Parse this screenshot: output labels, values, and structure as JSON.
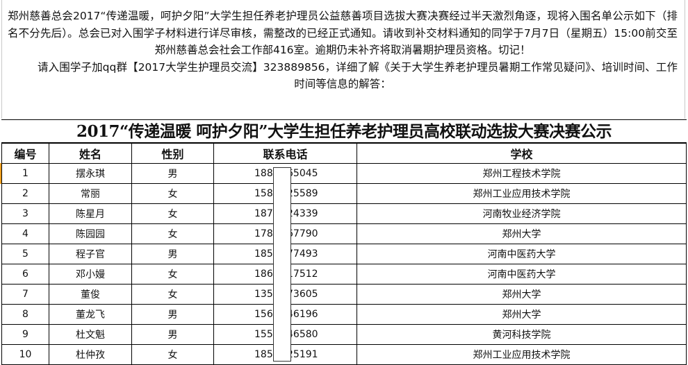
{
  "notice": {
    "paragraph1": "郑州慈善总会2017“传递温暖，呵护夕阳”大学生担任养老护理员公益慈善项目选拔大赛决赛经过半天激烈角逐，现将入围名单公示如下（排名不分先后）。总会已对入围学子材料进行详尽审核，需整改的已经正式通知。请收到补交材料通知的同学于7月7日（星期五）15:00前交至郑州慈善总会社会工作部416室。逾期仍未补齐将取消暑期护理员资格。切记！",
    "paragraph2": "请入围学子加qq群【2017大学生护理员交流】323889856，详细了解《关于大学生养老护理员暑期工作常见疑问》、培训时间、工作时间等信息的解答："
  },
  "title": "2017“传递温暖 呵护夕阳”大学生担任养老护理员高校联动选拔大赛决赛公示",
  "columns": [
    "编号",
    "姓名",
    "性别",
    "联系电话",
    "学校"
  ],
  "rows": [
    {
      "no": "1",
      "name": "摆永琪",
      "gender": "男",
      "phone_prefix": "188",
      "phone_suffix": "65045",
      "school": "郑州工程技术学院"
    },
    {
      "no": "2",
      "name": "常丽",
      "gender": "女",
      "phone_prefix": "158",
      "phone_suffix": "25589",
      "school": "郑州工业应用技术学院"
    },
    {
      "no": "3",
      "name": "陈星月",
      "gender": "女",
      "phone_prefix": "187",
      "phone_suffix": "24339",
      "school": "河南牧业经济学院"
    },
    {
      "no": "4",
      "name": "陈园园",
      "gender": "女",
      "phone_prefix": "178",
      "phone_suffix": "67790",
      "school": "郑州大学"
    },
    {
      "no": "5",
      "name": "程子官",
      "gender": "男",
      "phone_prefix": "185",
      "phone_suffix": "77493",
      "school": "河南中医药大学"
    },
    {
      "no": "6",
      "name": "邓小嫚",
      "gender": "女",
      "phone_prefix": "186",
      "phone_suffix": "17512",
      "school": "河南中医药大学"
    },
    {
      "no": "7",
      "name": "董俊",
      "gender": "女",
      "phone_prefix": "135",
      "phone_suffix": "73605",
      "school": "郑州大学"
    },
    {
      "no": "8",
      "name": "董龙飞",
      "gender": "男",
      "phone_prefix": "156",
      "phone_suffix": "46196",
      "school": "郑州大学"
    },
    {
      "no": "9",
      "name": "杜文魁",
      "gender": "男",
      "phone_prefix": "155",
      "phone_suffix": "46580",
      "school": "黄河科技学院"
    },
    {
      "no": "10",
      "name": "杜仲孜",
      "gender": "女",
      "phone_prefix": "185",
      "phone_suffix": "25191",
      "school": "郑州工业应用技术学院"
    }
  ]
}
